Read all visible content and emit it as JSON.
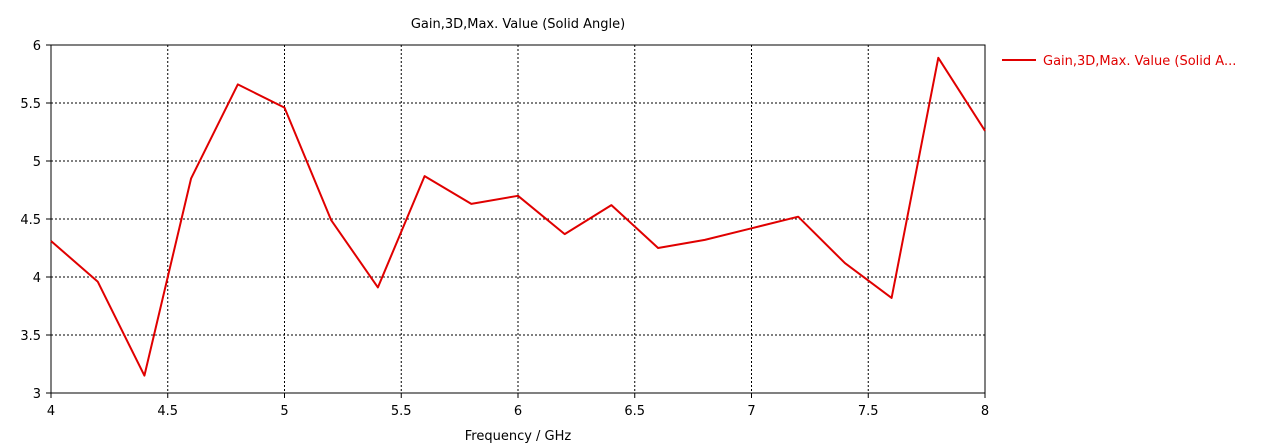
{
  "chart_data": {
    "type": "line",
    "title": "Gain,3D,Max. Value (Solid Angle)",
    "xlabel": "Frequency / GHz",
    "ylabel": "",
    "xlim": [
      4,
      8
    ],
    "ylim": [
      3,
      6
    ],
    "xticks": [
      "4",
      "4.5",
      "5",
      "5.5",
      "6",
      "6.5",
      "7",
      "7.5",
      "8"
    ],
    "yticks": [
      "3",
      "3.5",
      "4",
      "4.5",
      "5",
      "5.5",
      "6"
    ],
    "grid": true,
    "legend_position": "right",
    "series": [
      {
        "name": "Gain,3D,Max. Value (Solid A...",
        "color": "#e00000",
        "x": [
          4.0,
          4.2,
          4.4,
          4.6,
          4.8,
          5.0,
          5.2,
          5.4,
          5.6,
          5.8,
          6.0,
          6.2,
          6.4,
          6.6,
          6.8,
          7.0,
          7.2,
          7.4,
          7.6,
          7.8,
          8.0
        ],
        "y": [
          4.31,
          3.96,
          3.15,
          4.85,
          5.66,
          5.46,
          4.49,
          3.91,
          4.87,
          4.63,
          4.7,
          4.37,
          4.62,
          4.25,
          4.32,
          4.42,
          4.52,
          4.12,
          3.82,
          5.89,
          5.26
        ]
      }
    ]
  }
}
